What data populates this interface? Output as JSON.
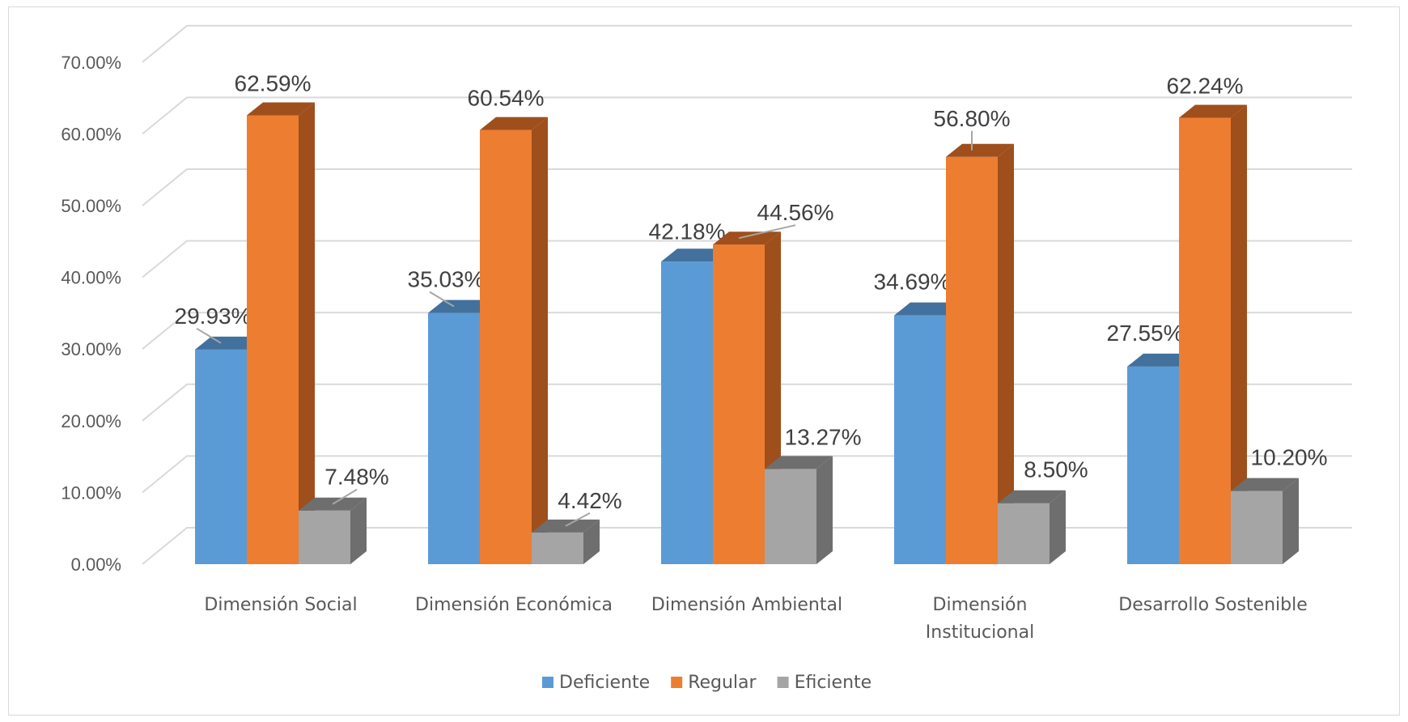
{
  "chart_data": {
    "type": "bar",
    "subtype": "3d-clustered-column",
    "categories": [
      [
        "Dimensión Social"
      ],
      [
        "Dimensión Económica"
      ],
      [
        "Dimensión Ambiental"
      ],
      [
        "Dimensión",
        "Institucional"
      ],
      [
        "Desarrollo Sostenible"
      ]
    ],
    "series": [
      {
        "name": "Deficiente",
        "color": "#5b9bd5",
        "side_color": "#41719c",
        "values": [
          29.93,
          35.03,
          42.18,
          34.69,
          27.55
        ]
      },
      {
        "name": "Regular",
        "color": "#ed7d31",
        "side_color": "#9e4f1c",
        "values": [
          62.59,
          60.54,
          44.56,
          56.8,
          62.24
        ]
      },
      {
        "name": "Eficiente",
        "color": "#a5a5a5",
        "side_color": "#6e6e6e",
        "values": [
          7.48,
          4.42,
          13.27,
          8.5,
          10.2
        ]
      }
    ],
    "data_labels": [
      [
        "29.93%",
        "62.59%",
        "7.48%"
      ],
      [
        "35.03%",
        "60.54%",
        "4.42%"
      ],
      [
        "42.18%",
        "44.56%",
        "13.27%"
      ],
      [
        "34.69%",
        "56.80%",
        "8.50%"
      ],
      [
        "27.55%",
        "62.24%",
        "10.20%"
      ]
    ],
    "ylim": [
      0,
      70
    ],
    "y_ticks": [
      "0.00%",
      "10.00%",
      "20.00%",
      "30.00%",
      "40.00%",
      "50.00%",
      "60.00%",
      "70.00%"
    ],
    "grid": true,
    "legend_position": "bottom"
  }
}
